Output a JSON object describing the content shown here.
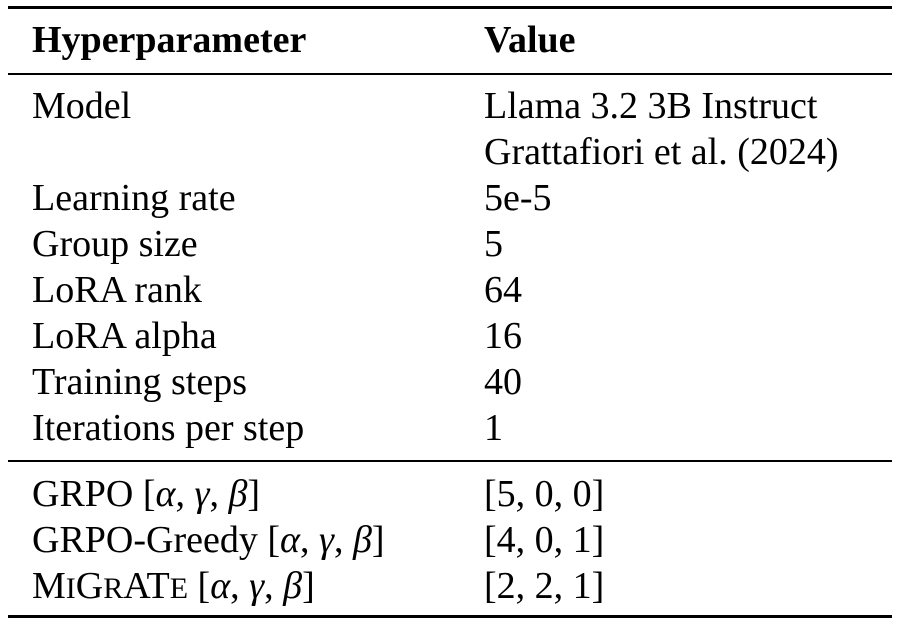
{
  "table": {
    "header": {
      "param": "Hyperparameter",
      "value": "Value"
    },
    "rows": [
      {
        "param": "Model",
        "value": "Llama 3.2 3B Instruct",
        "value2": "Grattafiori et al. (2024)"
      },
      {
        "param": "Learning rate",
        "value": "5e-5"
      },
      {
        "param": "Group size",
        "value": "5"
      },
      {
        "param": "LoRA rank",
        "value": "64"
      },
      {
        "param": "LoRA alpha",
        "value": "16"
      },
      {
        "param": "Training steps",
        "value": "40"
      },
      {
        "param": "Iterations per step",
        "value": "1"
      }
    ],
    "coef_rows": [
      {
        "method": "GRPO",
        "symbols": [
          "α",
          "γ",
          "β"
        ],
        "value": "[5, 0, 0]"
      },
      {
        "method": "GRPO-Greedy",
        "symbols": [
          "α",
          "γ",
          "β"
        ],
        "value": "[4, 0, 1]"
      },
      {
        "method_parts": [
          "M",
          "I",
          "G",
          "R",
          "A",
          "T",
          "E"
        ],
        "symbols": [
          "α",
          "γ",
          "β"
        ],
        "value": "[2, 2, 1]"
      }
    ]
  }
}
